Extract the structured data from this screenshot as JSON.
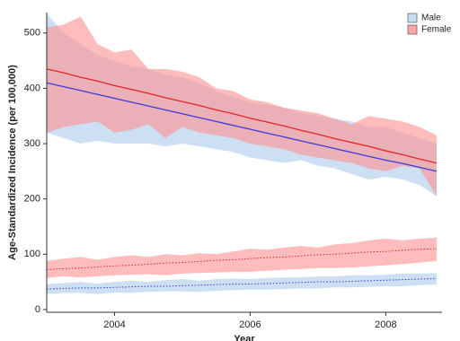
{
  "chart_data": {
    "type": "band-line",
    "xlabel": "Year",
    "ylabel": "Age-Standardized Incidence (per 100,000)",
    "x": [
      2003,
      2003.25,
      2003.5,
      2003.75,
      2004,
      2004.25,
      2004.5,
      2004.75,
      2005,
      2005.25,
      2005.5,
      2005.75,
      2006,
      2006.25,
      2006.5,
      2006.75,
      2007,
      2007.25,
      2007.5,
      2007.75,
      2008,
      2008.25,
      2008.5,
      2008.75
    ],
    "xlim": [
      2003,
      2008.83
    ],
    "xticks": [
      2004,
      2006,
      2008
    ],
    "ylim": [
      -5,
      537
    ],
    "yticks": [
      0,
      100,
      200,
      300,
      400,
      500
    ],
    "trend_styles": [
      "solid",
      "dotted"
    ],
    "legend": "top-right",
    "series": [
      {
        "name": "Male",
        "color": "#3a3adc",
        "fill": "#bcd4ee",
        "bands": [
          {
            "upper": [
              535,
              500,
              480,
              460,
              450,
              440,
              435,
              425,
              420,
              410,
              395,
              385,
              375,
              370,
              365,
              355,
              350,
              345,
              340,
              330,
              330,
              320,
              310,
              300
            ],
            "lower": [
              320,
              310,
              300,
              305,
              300,
              300,
              300,
              295,
              300,
              295,
              290,
              285,
              275,
              270,
              265,
              270,
              260,
              255,
              245,
              235,
              240,
              235,
              225,
              205
            ],
            "trend": [
              410,
              403,
              396,
              389,
              382,
              375,
              368,
              361,
              354,
              347,
              340,
              333,
              326,
              319,
              312,
              305,
              298,
              291,
              284,
              277,
              270,
              264,
              257,
              250
            ]
          },
          {
            "upper": [
              46,
              48,
              50,
              47,
              50,
              52,
              50,
              53,
              55,
              52,
              55,
              56,
              55,
              57,
              58,
              58,
              60,
              60,
              62,
              62,
              63,
              65,
              65,
              66
            ],
            "lower": [
              28,
              30,
              30,
              28,
              31,
              30,
              32,
              33,
              33,
              32,
              34,
              35,
              36,
              36,
              37,
              38,
              38,
              40,
              40,
              41,
              42,
              42,
              44,
              45
            ],
            "trend": [
              37,
              38,
              39,
              39,
              40,
              41,
              42,
              42,
              43,
              44,
              45,
              46,
              46,
              47,
              48,
              49,
              50,
              50,
              51,
              52,
              53,
              54,
              55,
              56
            ]
          }
        ]
      },
      {
        "name": "Female",
        "color": "#e02626",
        "fill": "#ff8f8f",
        "bands": [
          {
            "upper": [
              510,
              515,
              530,
              480,
              465,
              470,
              435,
              435,
              430,
              420,
              400,
              395,
              380,
              375,
              365,
              360,
              355,
              345,
              335,
              350,
              345,
              340,
              330,
              315
            ],
            "lower": [
              320,
              330,
              335,
              340,
              320,
              325,
              335,
              310,
              330,
              320,
              315,
              310,
              300,
              295,
              290,
              280,
              275,
              270,
              265,
              255,
              250,
              260,
              255,
              205
            ],
            "trend": [
              435,
              428,
              420,
              413,
              405,
              398,
              391,
              383,
              376,
              369,
              361,
              354,
              346,
              339,
              332,
              324,
              317,
              309,
              302,
              295,
              287,
              280,
              272,
              265
            ]
          },
          {
            "upper": [
              88,
              92,
              95,
              90,
              95,
              98,
              95,
              100,
              98,
              102,
              100,
              105,
              110,
              108,
              112,
              115,
              112,
              118,
              120,
              125,
              128,
              125,
              128,
              130
            ],
            "lower": [
              57,
              60,
              58,
              60,
              62,
              63,
              64,
              62,
              65,
              66,
              67,
              68,
              68,
              70,
              72,
              73,
              75,
              75,
              76,
              78,
              80,
              82,
              85,
              88
            ],
            "trend": [
              72,
              74,
              75,
              77,
              79,
              80,
              82,
              84,
              85,
              87,
              89,
              90,
              92,
              94,
              95,
              97,
              99,
              100,
              102,
              104,
              105,
              107,
              109,
              110
            ]
          }
        ]
      }
    ]
  }
}
